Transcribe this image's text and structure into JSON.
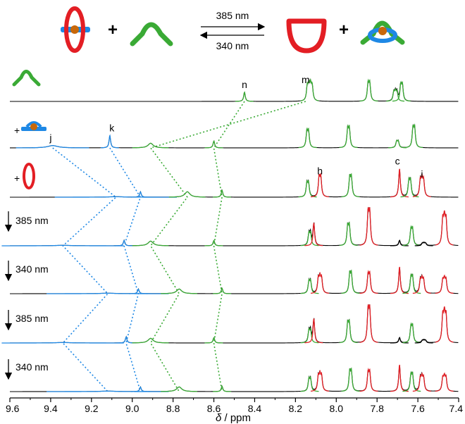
{
  "scheme": {
    "arrow_forward_label": "385 nm",
    "arrow_backward_label": "340 nm",
    "plus_1": "+",
    "plus_2": "+"
  },
  "chart_data": {
    "type": "line",
    "title": "",
    "xlabel_prefix": "δ",
    "xlabel_suffix": " / ppm",
    "xlim": [
      9.6,
      7.4
    ],
    "x_ticks": [
      9.6,
      9.4,
      9.2,
      9.0,
      8.8,
      8.6,
      8.4,
      8.2,
      8.0,
      7.8,
      7.6,
      7.4
    ],
    "x_tick_labels": [
      "9.6",
      "9.4",
      "9.2",
      "9.0",
      "8.8",
      "8.6",
      "8.4",
      "8.2",
      "8.0",
      "7.8",
      "7.6",
      "7.4"
    ],
    "colors": {
      "green": "#3aaa35",
      "red": "#e31e24",
      "blue": "#1e88e5",
      "black": "#000000",
      "orange": "#c8680a"
    },
    "series": [
      {
        "row_label": "",
        "icon": "green-thread-icon",
        "peak_labels": [
          {
            "text": "n",
            "x": 8.45
          },
          {
            "text": "m",
            "x": 8.15
          }
        ]
      },
      {
        "row_label": "+",
        "icon": "blue-axle-icon",
        "peak_labels": [
          {
            "text": "j",
            "x": 9.4
          },
          {
            "text": "k",
            "x": 9.1
          }
        ]
      },
      {
        "row_label": "+",
        "icon": "red-ring-icon",
        "peak_labels": [
          {
            "text": "h",
            "x": 8.08
          },
          {
            "text": "c",
            "x": 7.7
          },
          {
            "text": "i",
            "x": 7.58
          }
        ]
      },
      {
        "row_label": "385 nm",
        "icon": "down-arrow-icon",
        "peak_labels": []
      },
      {
        "row_label": "340 nm",
        "icon": "down-arrow-icon",
        "peak_labels": []
      },
      {
        "row_label": "385 nm",
        "icon": "down-arrow-icon",
        "peak_labels": []
      },
      {
        "row_label": "340 nm",
        "icon": "down-arrow-icon",
        "peak_labels": []
      }
    ],
    "peaks": [
      [
        {
          "x": 8.45,
          "h": 0.6,
          "c": "green"
        },
        {
          "x": 8.13,
          "h": 0.9,
          "c": "green",
          "m": 4
        },
        {
          "x": 7.84,
          "h": 1.1,
          "c": "green",
          "m": 2
        },
        {
          "x": 7.71,
          "h": 0.55,
          "c": "green",
          "m": 3
        },
        {
          "x": 7.68,
          "h": 1.0,
          "c": "green",
          "m": 2
        }
      ],
      [
        {
          "x": 9.39,
          "h": 0.15,
          "c": "blue",
          "w": 0.03
        },
        {
          "x": 9.11,
          "h": 0.8,
          "c": "blue"
        },
        {
          "x": 8.91,
          "h": 0.3,
          "c": "green",
          "w": 0.015
        },
        {
          "x": 8.6,
          "h": 0.45,
          "c": "green"
        },
        {
          "x": 8.14,
          "h": 1.0,
          "c": "green",
          "m": 2
        },
        {
          "x": 7.94,
          "h": 1.15,
          "c": "green",
          "m": 2
        },
        {
          "x": 7.7,
          "h": 0.4,
          "c": "green",
          "m": 2
        },
        {
          "x": 7.62,
          "h": 1.2,
          "c": "green",
          "m": 2
        }
      ],
      [
        {
          "x": 9.08,
          "h": 0.03,
          "c": "blue",
          "w": 0.05
        },
        {
          "x": 8.96,
          "h": 0.35,
          "c": "blue"
        },
        {
          "x": 8.73,
          "h": 0.35,
          "c": "green",
          "w": 0.015
        },
        {
          "x": 8.56,
          "h": 0.45,
          "c": "green"
        },
        {
          "x": 8.14,
          "h": 0.85,
          "c": "green",
          "m": 2
        },
        {
          "x": 8.08,
          "h": 1.2,
          "c": "red",
          "m": 2
        },
        {
          "x": 7.93,
          "h": 1.2,
          "c": "green",
          "m": 2
        },
        {
          "x": 7.69,
          "h": 1.85,
          "c": "red"
        },
        {
          "x": 7.64,
          "h": 1.0,
          "c": "green",
          "m": 2
        },
        {
          "x": 7.58,
          "h": 1.0,
          "c": "red",
          "m": 3
        }
      ],
      [
        {
          "x": 9.34,
          "h": 0.03,
          "c": "blue",
          "w": 0.05
        },
        {
          "x": 9.04,
          "h": 0.35,
          "c": "blue"
        },
        {
          "x": 8.91,
          "h": 0.3,
          "c": "green",
          "w": 0.015
        },
        {
          "x": 8.6,
          "h": 0.35,
          "c": "green"
        },
        {
          "x": 8.13,
          "h": 0.75,
          "c": "green",
          "m": 2
        },
        {
          "x": 8.11,
          "h": 1.5,
          "c": "red"
        },
        {
          "x": 7.94,
          "h": 1.2,
          "c": "green",
          "m": 2
        },
        {
          "x": 7.84,
          "h": 2.0,
          "c": "red",
          "m": 2
        },
        {
          "x": 7.69,
          "h": 0.35,
          "c": "black"
        },
        {
          "x": 7.63,
          "h": 1.0,
          "c": "green",
          "m": 2
        },
        {
          "x": 7.57,
          "h": 0.15,
          "c": "black",
          "m": 3
        },
        {
          "x": 7.47,
          "h": 1.55,
          "c": "red",
          "m": 3
        }
      ],
      [
        {
          "x": 9.12,
          "h": 0.03,
          "c": "blue",
          "w": 0.05
        },
        {
          "x": 8.97,
          "h": 0.3,
          "c": "blue"
        },
        {
          "x": 8.77,
          "h": 0.3,
          "c": "green",
          "w": 0.015
        },
        {
          "x": 8.56,
          "h": 0.35,
          "c": "green"
        },
        {
          "x": 8.13,
          "h": 0.75,
          "c": "green",
          "m": 2
        },
        {
          "x": 8.08,
          "h": 0.9,
          "c": "red",
          "m": 3
        },
        {
          "x": 7.93,
          "h": 1.2,
          "c": "green",
          "m": 2
        },
        {
          "x": 7.84,
          "h": 1.15,
          "c": "red",
          "m": 2
        },
        {
          "x": 7.69,
          "h": 1.75,
          "c": "red"
        },
        {
          "x": 7.63,
          "h": 1.0,
          "c": "green",
          "m": 2
        },
        {
          "x": 7.58,
          "h": 0.8,
          "c": "red",
          "m": 3
        },
        {
          "x": 7.47,
          "h": 0.8,
          "c": "red",
          "m": 3
        }
      ],
      [
        {
          "x": 9.34,
          "h": 0.03,
          "c": "blue",
          "w": 0.05
        },
        {
          "x": 9.03,
          "h": 0.4,
          "c": "blue"
        },
        {
          "x": 8.91,
          "h": 0.3,
          "c": "green",
          "w": 0.015
        },
        {
          "x": 8.6,
          "h": 0.35,
          "c": "green"
        },
        {
          "x": 8.13,
          "h": 0.75,
          "c": "green",
          "m": 2
        },
        {
          "x": 8.11,
          "h": 1.6,
          "c": "red"
        },
        {
          "x": 7.94,
          "h": 1.2,
          "c": "green",
          "m": 2
        },
        {
          "x": 7.84,
          "h": 2.0,
          "c": "red",
          "m": 2
        },
        {
          "x": 7.69,
          "h": 0.35,
          "c": "black"
        },
        {
          "x": 7.63,
          "h": 1.0,
          "c": "green",
          "m": 2
        },
        {
          "x": 7.57,
          "h": 0.15,
          "c": "black",
          "m": 3
        },
        {
          "x": 7.47,
          "h": 1.6,
          "c": "red",
          "m": 3
        }
      ],
      [
        {
          "x": 9.12,
          "h": 0.03,
          "c": "blue",
          "w": 0.05
        },
        {
          "x": 8.96,
          "h": 0.3,
          "c": "blue"
        },
        {
          "x": 8.77,
          "h": 0.3,
          "c": "green",
          "w": 0.015
        },
        {
          "x": 8.56,
          "h": 0.35,
          "c": "green"
        },
        {
          "x": 8.13,
          "h": 0.75,
          "c": "green",
          "m": 2
        },
        {
          "x": 8.08,
          "h": 0.9,
          "c": "red",
          "m": 3
        },
        {
          "x": 7.93,
          "h": 1.2,
          "c": "green",
          "m": 2
        },
        {
          "x": 7.84,
          "h": 1.15,
          "c": "red",
          "m": 2
        },
        {
          "x": 7.69,
          "h": 1.75,
          "c": "red"
        },
        {
          "x": 7.63,
          "h": 1.0,
          "c": "green",
          "m": 2
        },
        {
          "x": 7.58,
          "h": 0.8,
          "c": "red",
          "m": 3
        },
        {
          "x": 7.47,
          "h": 0.8,
          "c": "red",
          "m": 3
        }
      ]
    ],
    "connectors": [
      {
        "color": "blue",
        "points": [
          [
            9.39,
            1
          ],
          [
            9.08,
            2
          ],
          [
            9.34,
            3
          ],
          [
            9.12,
            4
          ],
          [
            9.34,
            5
          ],
          [
            9.12,
            6
          ]
        ]
      },
      {
        "color": "blue",
        "points": [
          [
            9.11,
            1
          ],
          [
            8.96,
            2
          ],
          [
            9.04,
            3
          ],
          [
            8.97,
            4
          ],
          [
            9.03,
            5
          ],
          [
            8.96,
            6
          ]
        ]
      },
      {
        "color": "green",
        "points": [
          [
            8.15,
            0
          ],
          [
            8.91,
            1
          ],
          [
            8.73,
            2
          ],
          [
            8.91,
            3
          ],
          [
            8.77,
            4
          ],
          [
            8.91,
            5
          ],
          [
            8.77,
            6
          ]
        ]
      },
      {
        "color": "green",
        "points": [
          [
            8.45,
            0
          ],
          [
            8.6,
            1
          ],
          [
            8.56,
            2
          ],
          [
            8.6,
            3
          ],
          [
            8.56,
            4
          ],
          [
            8.6,
            5
          ],
          [
            8.56,
            6
          ]
        ]
      }
    ]
  }
}
